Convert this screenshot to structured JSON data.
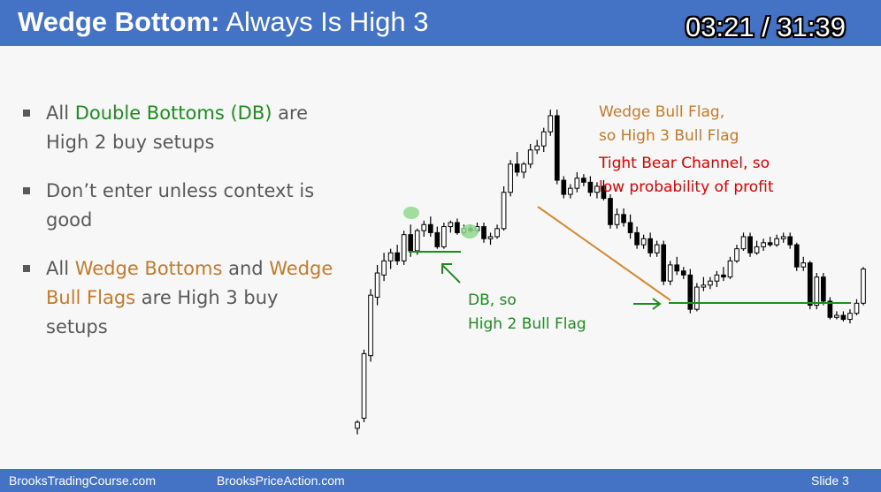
{
  "header": {
    "title_bold": "Wedge Bottom:",
    "title_rest": "Always Is High 3",
    "timer": "03:21 / 31:39"
  },
  "bullets": [
    {
      "pre": "All ",
      "hl": "Double Bottoms (DB)",
      "post": " are High 2 buy setups",
      "hl_color": "green"
    },
    {
      "pre": "Don’t enter unless context is good",
      "hl": "",
      "post": "",
      "hl_color": ""
    },
    {
      "pre": "All ",
      "hl": "Wedge Bottoms",
      "mid": " and ",
      "hl2": "Wedge Bull Flags",
      "post": " are High 3 buy setups",
      "hl_color": "orange"
    }
  ],
  "annotations": {
    "wedge_line1": "Wedge Bull Flag,",
    "wedge_line2": "so High 3 Bull Flag",
    "bear_line1": "Tight Bear Channel, so",
    "bear_line2": "low probability of profit",
    "db_line1": "DB, so",
    "db_line2": "High 2 Bull Flag"
  },
  "footer": {
    "left": "BrooksTradingCourse.com",
    "center": "BrooksPriceAction.com",
    "slide": "Slide  3"
  },
  "colors": {
    "header_bg": "#4472c4",
    "green": "#1e8c1e",
    "orange": "#c47a2c",
    "red": "#e00000",
    "candle_bull": "#ffffff",
    "candle_bear": "#000000"
  },
  "chart_data": {
    "type": "candlestick",
    "candles": [
      {
        "o": -3,
        "h": 1,
        "l": -6,
        "c": 0
      },
      {
        "o": 2,
        "h": 36,
        "l": 0,
        "c": 34
      },
      {
        "o": 33,
        "h": 66,
        "l": 30,
        "c": 63
      },
      {
        "o": 62,
        "h": 78,
        "l": 58,
        "c": 74
      },
      {
        "o": 73,
        "h": 84,
        "l": 70,
        "c": 80
      },
      {
        "o": 80,
        "h": 86,
        "l": 76,
        "c": 84
      },
      {
        "o": 84,
        "h": 88,
        "l": 78,
        "c": 80
      },
      {
        "o": 80,
        "h": 95,
        "l": 78,
        "c": 93
      },
      {
        "o": 93,
        "h": 98,
        "l": 82,
        "c": 85
      },
      {
        "o": 85,
        "h": 96,
        "l": 83,
        "c": 95
      },
      {
        "o": 95,
        "h": 100,
        "l": 92,
        "c": 98
      },
      {
        "o": 98,
        "h": 102,
        "l": 92,
        "c": 94
      },
      {
        "o": 94,
        "h": 97,
        "l": 86,
        "c": 87
      },
      {
        "o": 87,
        "h": 99,
        "l": 86,
        "c": 97
      },
      {
        "o": 97,
        "h": 100,
        "l": 94,
        "c": 99
      },
      {
        "o": 99,
        "h": 101,
        "l": 93,
        "c": 94
      },
      {
        "o": 94,
        "h": 98,
        "l": 93,
        "c": 96
      },
      {
        "o": 96,
        "h": 98,
        "l": 94,
        "c": 95
      },
      {
        "o": 95,
        "h": 99,
        "l": 94,
        "c": 97
      },
      {
        "o": 97,
        "h": 99,
        "l": 89,
        "c": 91
      },
      {
        "o": 91,
        "h": 94,
        "l": 88,
        "c": 92
      },
      {
        "o": 92,
        "h": 98,
        "l": 91,
        "c": 96
      },
      {
        "o": 96,
        "h": 117,
        "l": 95,
        "c": 114
      },
      {
        "o": 114,
        "h": 130,
        "l": 112,
        "c": 128
      },
      {
        "o": 128,
        "h": 134,
        "l": 122,
        "c": 124
      },
      {
        "o": 124,
        "h": 129,
        "l": 121,
        "c": 128
      },
      {
        "o": 128,
        "h": 138,
        "l": 126,
        "c": 135
      },
      {
        "o": 135,
        "h": 140,
        "l": 133,
        "c": 137
      },
      {
        "o": 137,
        "h": 146,
        "l": 134,
        "c": 144
      },
      {
        "o": 144,
        "h": 155,
        "l": 142,
        "c": 152
      },
      {
        "o": 152,
        "h": 155,
        "l": 118,
        "c": 120
      },
      {
        "o": 120,
        "h": 122,
        "l": 111,
        "c": 113
      },
      {
        "o": 113,
        "h": 118,
        "l": 111,
        "c": 116
      },
      {
        "o": 116,
        "h": 124,
        "l": 114,
        "c": 121
      },
      {
        "o": 121,
        "h": 123,
        "l": 117,
        "c": 119
      },
      {
        "o": 119,
        "h": 122,
        "l": 112,
        "c": 114
      },
      {
        "o": 114,
        "h": 119,
        "l": 111,
        "c": 117
      },
      {
        "o": 117,
        "h": 120,
        "l": 110,
        "c": 111
      },
      {
        "o": 111,
        "h": 113,
        "l": 96,
        "c": 98
      },
      {
        "o": 98,
        "h": 106,
        "l": 96,
        "c": 103
      },
      {
        "o": 103,
        "h": 106,
        "l": 97,
        "c": 99
      },
      {
        "o": 99,
        "h": 103,
        "l": 91,
        "c": 94
      },
      {
        "o": 94,
        "h": 97,
        "l": 86,
        "c": 88
      },
      {
        "o": 88,
        "h": 93,
        "l": 86,
        "c": 91
      },
      {
        "o": 91,
        "h": 94,
        "l": 82,
        "c": 84
      },
      {
        "o": 84,
        "h": 90,
        "l": 82,
        "c": 88
      },
      {
        "o": 88,
        "h": 90,
        "l": 68,
        "c": 70
      },
      {
        "o": 70,
        "h": 80,
        "l": 68,
        "c": 78
      },
      {
        "o": 78,
        "h": 82,
        "l": 73,
        "c": 75
      },
      {
        "o": 75,
        "h": 77,
        "l": 71,
        "c": 73
      },
      {
        "o": 73,
        "h": 76,
        "l": 54,
        "c": 56
      },
      {
        "o": 56,
        "h": 69,
        "l": 55,
        "c": 67
      },
      {
        "o": 67,
        "h": 72,
        "l": 65,
        "c": 68
      },
      {
        "o": 68,
        "h": 72,
        "l": 66,
        "c": 70
      },
      {
        "o": 70,
        "h": 75,
        "l": 67,
        "c": 73
      },
      {
        "o": 73,
        "h": 77,
        "l": 70,
        "c": 72
      },
      {
        "o": 72,
        "h": 82,
        "l": 71,
        "c": 80
      },
      {
        "o": 80,
        "h": 88,
        "l": 79,
        "c": 86
      },
      {
        "o": 86,
        "h": 94,
        "l": 85,
        "c": 92
      },
      {
        "o": 92,
        "h": 94,
        "l": 82,
        "c": 84
      },
      {
        "o": 84,
        "h": 90,
        "l": 83,
        "c": 87
      },
      {
        "o": 87,
        "h": 91,
        "l": 85,
        "c": 89
      },
      {
        "o": 89,
        "h": 92,
        "l": 87,
        "c": 88
      },
      {
        "o": 88,
        "h": 93,
        "l": 87,
        "c": 91
      },
      {
        "o": 91,
        "h": 94,
        "l": 89,
        "c": 92
      },
      {
        "o": 92,
        "h": 94,
        "l": 86,
        "c": 88
      },
      {
        "o": 88,
        "h": 89,
        "l": 75,
        "c": 77
      },
      {
        "o": 77,
        "h": 82,
        "l": 75,
        "c": 79
      },
      {
        "o": 79,
        "h": 80,
        "l": 56,
        "c": 58
      },
      {
        "o": 58,
        "h": 74,
        "l": 56,
        "c": 72
      },
      {
        "o": 72,
        "h": 74,
        "l": 58,
        "c": 60
      },
      {
        "o": 60,
        "h": 62,
        "l": 51,
        "c": 52
      },
      {
        "o": 52,
        "h": 55,
        "l": 51,
        "c": 53
      },
      {
        "o": 53,
        "h": 55,
        "l": 50,
        "c": 51
      },
      {
        "o": 51,
        "h": 56,
        "l": 49,
        "c": 54
      },
      {
        "o": 54,
        "h": 61,
        "l": 53,
        "c": 59
      },
      {
        "o": 59,
        "h": 77,
        "l": 58,
        "c": 76
      }
    ]
  }
}
